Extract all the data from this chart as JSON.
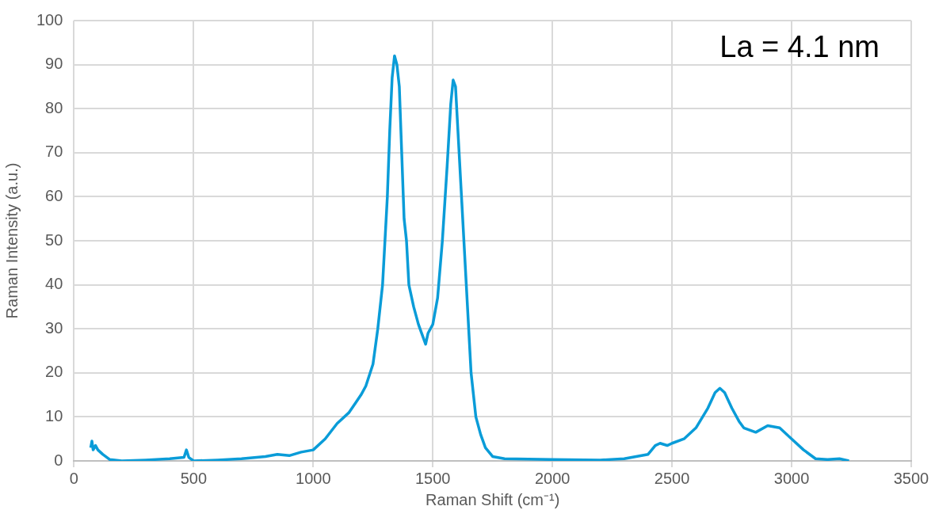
{
  "chart_data": {
    "type": "line",
    "xlabel": "Raman Shift (cm⁻¹)",
    "ylabel": "Raman Intensity (a.u.)",
    "annotations": [
      "La = 4.1 nm"
    ],
    "xlim": [
      0,
      3500
    ],
    "xticks": [
      0,
      500,
      1000,
      1500,
      2000,
      2500,
      3000,
      3500
    ],
    "ylim": [
      0,
      100
    ],
    "yticks": [
      0,
      10,
      20,
      30,
      40,
      50,
      60,
      70,
      80,
      90,
      100
    ],
    "grid": true,
    "marker": "none",
    "line_style": "solid",
    "series": [
      {
        "color": "#0a9cd8",
        "x": [
          70,
          75,
          80,
          90,
          100,
          120,
          150,
          200,
          300,
          400,
          460,
          470,
          480,
          500,
          600,
          700,
          800,
          850,
          900,
          950,
          1000,
          1050,
          1100,
          1150,
          1200,
          1220,
          1250,
          1270,
          1290,
          1300,
          1310,
          1320,
          1330,
          1340,
          1350,
          1360,
          1370,
          1380,
          1390,
          1400,
          1420,
          1440,
          1460,
          1470,
          1480,
          1500,
          1520,
          1540,
          1560,
          1575,
          1585,
          1595,
          1605,
          1620,
          1640,
          1660,
          1680,
          1700,
          1720,
          1750,
          1800,
          2000,
          2200,
          2300,
          2400,
          2430,
          2450,
          2480,
          2500,
          2550,
          2600,
          2650,
          2680,
          2700,
          2720,
          2750,
          2780,
          2800,
          2850,
          2900,
          2950,
          3000,
          3050,
          3100,
          3150,
          3200,
          3240
        ],
        "values": [
          3,
          4.5,
          2.5,
          3.5,
          2.5,
          1.5,
          0.3,
          0,
          0.2,
          0.5,
          0.8,
          2.5,
          0.8,
          0,
          0.2,
          0.5,
          1,
          1.5,
          1.2,
          2,
          2.5,
          5,
          8.5,
          11,
          15,
          17,
          22,
          30,
          40,
          50,
          60,
          75,
          87,
          92,
          90,
          85,
          70,
          55,
          50,
          40,
          35,
          31,
          28,
          26.5,
          29,
          31,
          37,
          50,
          67,
          81,
          86.5,
          85,
          75,
          60,
          40,
          20,
          10,
          6,
          3,
          1,
          0.5,
          0.3,
          0.2,
          0.5,
          1.5,
          3.5,
          4,
          3.5,
          4,
          5,
          7.5,
          12,
          15.5,
          16.5,
          15.5,
          12,
          9,
          7.5,
          6.5,
          8,
          7.5,
          5,
          2.5,
          0.5,
          0.3,
          0.5,
          0
        ]
      }
    ]
  }
}
